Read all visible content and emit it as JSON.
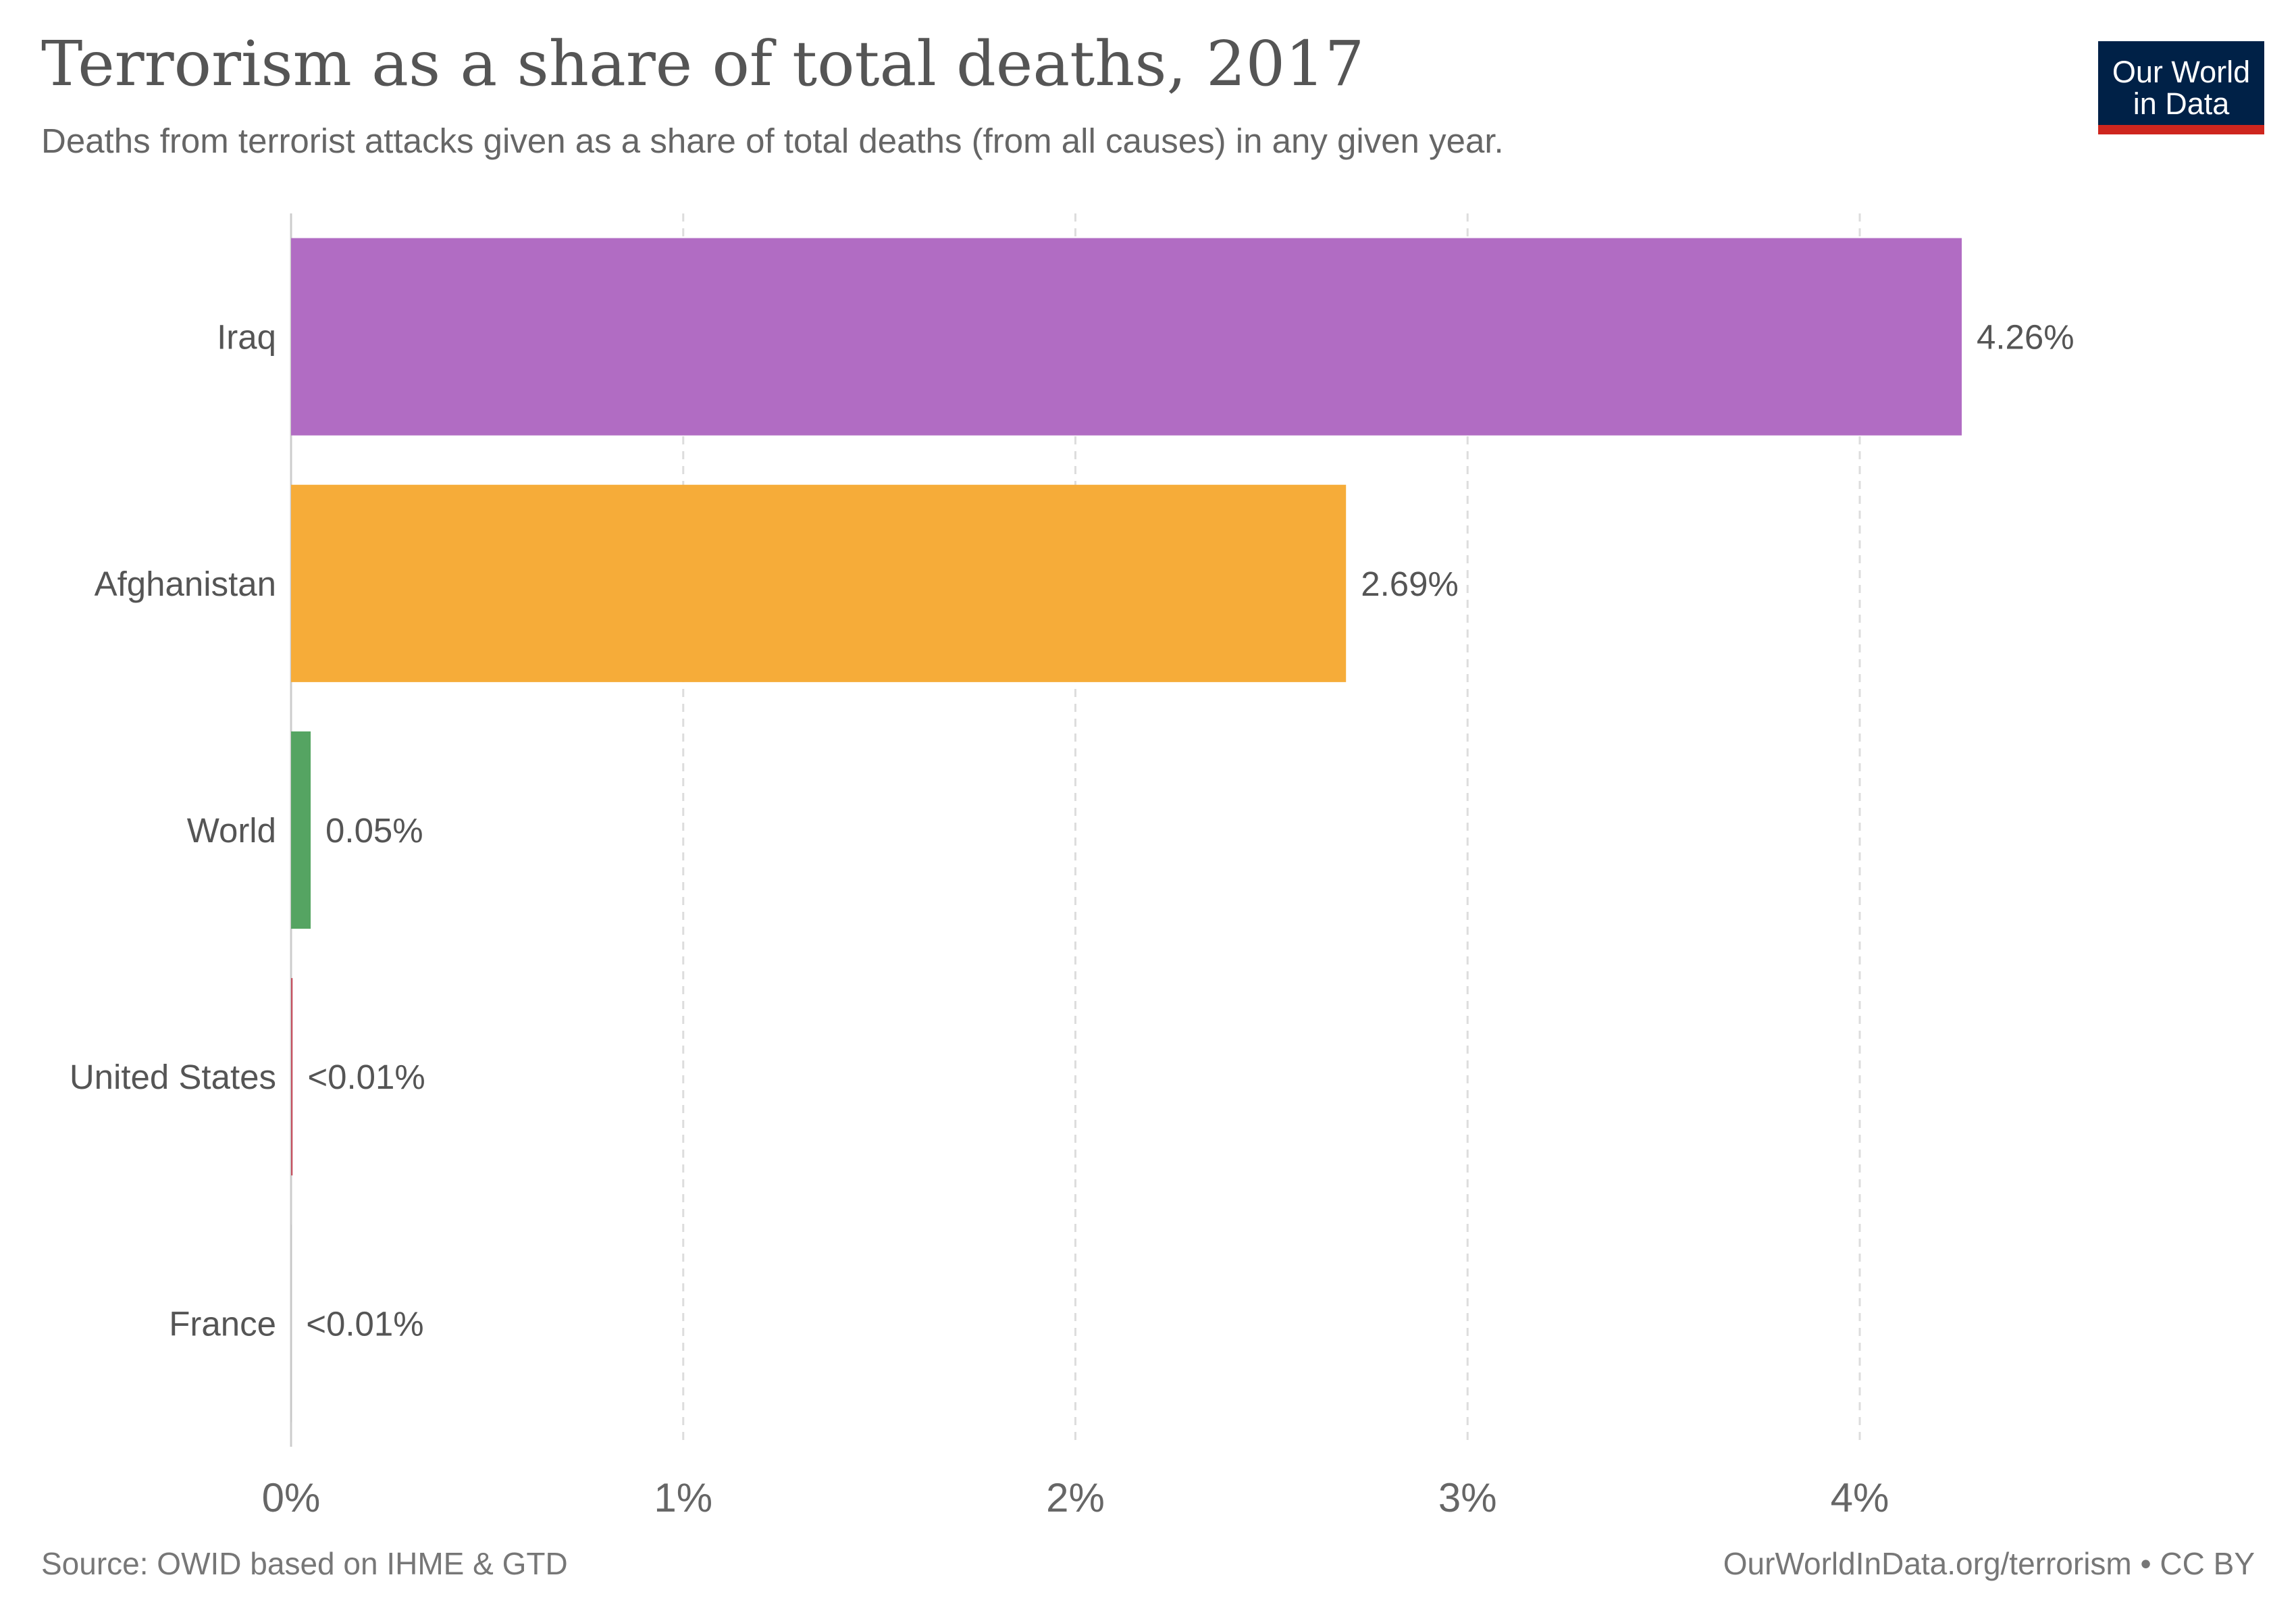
{
  "header": {
    "title": "Terrorism as a share of total deaths, 2017",
    "subtitle": "Deaths from terrorist attacks given as a share of total deaths (from all causes) in any given year."
  },
  "logo": {
    "line1": "Our World",
    "line2": "in Data",
    "background_color": "#002147",
    "accent_color": "#ce261e"
  },
  "footer": {
    "source": "Source: OWID based on IHME & GTD",
    "license": "OurWorldInData.org/terrorism • CC BY"
  },
  "chart_data": {
    "type": "bar",
    "orientation": "horizontal",
    "title": "Terrorism as a share of total deaths, 2017",
    "subtitle": "Deaths from terrorist attacks given as a share of total deaths (from all causes) in any given year.",
    "xlabel": "",
    "ylabel": "",
    "xlim": [
      0,
      4
    ],
    "x_ticks": [
      0,
      1,
      2,
      3,
      4
    ],
    "x_tick_labels": [
      "0%",
      "1%",
      "2%",
      "3%",
      "4%"
    ],
    "grid": "vertical dashed",
    "legend": "none",
    "categories": [
      "Iraq",
      "Afghanistan",
      "World",
      "United States",
      "France"
    ],
    "values": [
      4.26,
      2.69,
      0.05,
      0.004,
      0.0004
    ],
    "value_labels": [
      "4.26%",
      "2.69%",
      "0.05%",
      "<0.01%",
      "<0.01%"
    ],
    "colors": [
      "#b16cc3",
      "#f6ac39",
      "#55a462",
      "#c5505f",
      "#a8a8a8"
    ]
  }
}
